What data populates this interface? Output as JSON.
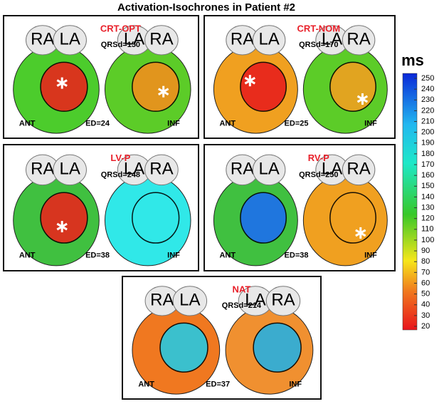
{
  "title": "Activation-Isochrones in Patient #2",
  "panels": [
    {
      "name": "CRT-OPT",
      "qrsd": "QRSd=150",
      "atria_left": [
        "RA",
        "LA"
      ],
      "atria_right": [
        "LA",
        "RA"
      ],
      "ant": "ANT",
      "ed": "ED=24",
      "inf": "INF"
    },
    {
      "name": "CRT-NOM",
      "qrsd": "QRSd=170",
      "atria_left": [
        "RA",
        "LA"
      ],
      "atria_right": [
        "LA",
        "RA"
      ],
      "ant": "ANT",
      "ed": "ED=25",
      "inf": "INF"
    },
    {
      "name": "LV-P",
      "qrsd": "QRSd=248",
      "atria_left": [
        "RA",
        "LA"
      ],
      "atria_right": [
        "LA",
        "RA"
      ],
      "ant": "ANT",
      "ed": "ED=38",
      "inf": "INF"
    },
    {
      "name": "RV-P",
      "qrsd": "QRSd=250",
      "atria_left": [
        "RA",
        "LA"
      ],
      "atria_right": [
        "LA",
        "RA"
      ],
      "ant": "ANT",
      "ed": "ED=38",
      "inf": "INF"
    },
    {
      "name": "NAT",
      "qrsd": "QRSd=214",
      "atria_left": [
        "RA",
        "LA"
      ],
      "atria_right": [
        "LA",
        "RA"
      ],
      "ant": "ANT",
      "ed": "ED=37",
      "inf": "INF"
    }
  ],
  "colorbar": {
    "unit": "ms",
    "ticks": [
      20,
      30,
      40,
      50,
      60,
      70,
      80,
      90,
      100,
      110,
      120,
      130,
      140,
      150,
      160,
      170,
      180,
      190,
      200,
      210,
      220,
      230,
      240,
      250
    ]
  }
}
